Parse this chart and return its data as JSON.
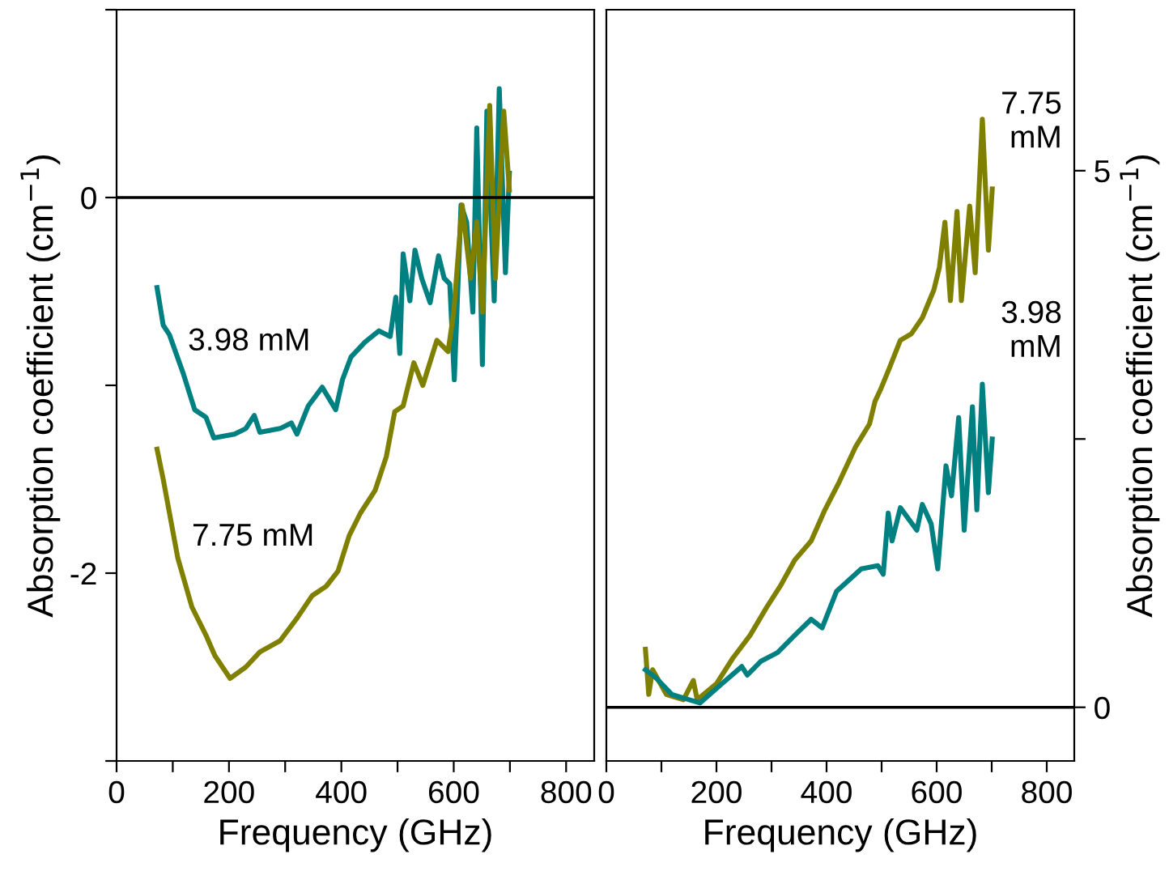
{
  "chart_data": [
    {
      "type": "line",
      "xlabel": "Frequency (GHz)",
      "ylabel": "Absorption coefficient (cm$^{−1}$)",
      "xlim": [
        0,
        850
      ],
      "ylim": [
        -3,
        1
      ],
      "xticks": [
        0,
        {
          "value": 100,
          "label": null
        },
        200,
        {
          "value": 300,
          "label": null
        },
        400,
        {
          "value": 500,
          "label": null
        },
        600,
        {
          "value": 700,
          "label": null
        },
        800
      ],
      "yticks": [
        {
          "value": -3,
          "label": null
        },
        -2,
        {
          "value": -1,
          "label": null
        },
        0,
        {
          "value": 1,
          "label": null
        }
      ],
      "ref_lines": [
        {
          "axis": "y",
          "value": 0,
          "color": "#000000"
        }
      ],
      "grid": false,
      "legend": false,
      "series": [
        {
          "name": "3.98 mM",
          "color": "#008080",
          "x": [
            72,
            83,
            94,
            119,
            139,
            159,
            173,
            210,
            230,
            245,
            255,
            291,
            311,
            321,
            341,
            366,
            390,
            402,
            417,
            442,
            467,
            487,
            497,
            504,
            510,
            522,
            531,
            543,
            558,
            573,
            583,
            593,
            601,
            613,
            623,
            634,
            641,
            651,
            659,
            672,
            681,
            692,
            699
          ],
          "values": [
            -0.48,
            -0.68,
            -0.73,
            -0.94,
            -1.13,
            -1.17,
            -1.28,
            -1.26,
            -1.23,
            -1.16,
            -1.25,
            -1.23,
            -1.2,
            -1.26,
            -1.11,
            -1.01,
            -1.13,
            -0.97,
            -0.85,
            -0.77,
            -0.71,
            -0.74,
            -0.53,
            -0.83,
            -0.3,
            -0.55,
            -0.28,
            -0.43,
            -0.56,
            -0.31,
            -0.43,
            -0.46,
            -0.97,
            -0.04,
            -0.13,
            -0.61,
            0.37,
            -0.89,
            0.46,
            -0.55,
            0.58,
            -0.4,
            0.13
          ]
        },
        {
          "name": "7.75 mM",
          "color": "#808000",
          "x": [
            72,
            83,
            109,
            134,
            159,
            175,
            202,
            230,
            255,
            291,
            321,
            348,
            373,
            394,
            414,
            434,
            460,
            480,
            495,
            510,
            529,
            545,
            570,
            590,
            600,
            615,
            630,
            641,
            651,
            664,
            674,
            689,
            699
          ],
          "values": [
            -1.34,
            -1.5,
            -1.92,
            -2.18,
            -2.33,
            -2.44,
            -2.56,
            -2.5,
            -2.42,
            -2.36,
            -2.24,
            -2.12,
            -2.07,
            -1.99,
            -1.8,
            -1.68,
            -1.56,
            -1.38,
            -1.14,
            -1.11,
            -0.88,
            -1.0,
            -0.76,
            -0.82,
            -0.61,
            -0.04,
            -0.43,
            -0.13,
            -0.61,
            0.49,
            -0.43,
            0.46,
            0.04
          ]
        }
      ]
    },
    {
      "type": "line",
      "xlabel": "Frequency (GHz)",
      "ylabel": "Absorption coefficient (cm$^{−1}$)",
      "xlim": [
        0,
        850
      ],
      "ylim": [
        -0.5,
        6.5
      ],
      "xticks": [
        0,
        {
          "value": 100,
          "label": null
        },
        200,
        {
          "value": 300,
          "label": null
        },
        400,
        {
          "value": 500,
          "label": null
        },
        600,
        {
          "value": 700,
          "label": null
        },
        800
      ],
      "yticks": [
        0,
        {
          "value": 2.5,
          "label": null
        },
        5
      ],
      "ref_lines": [
        {
          "axis": "y",
          "value": 0,
          "color": "#000000"
        }
      ],
      "grid": false,
      "legend": false,
      "series": [
        {
          "name": "7.75 mM",
          "color": "#808000",
          "x": [
            71,
            77,
            84,
            109,
            140,
            158,
            165,
            200,
            230,
            261,
            291,
            316,
            342,
            372,
            397,
            423,
            453,
            478,
            488,
            498,
            514,
            534,
            554,
            574,
            595,
            605,
            615,
            625,
            637,
            645,
            660,
            670,
            683,
            694,
            701
          ],
          "values": [
            0.54,
            0.12,
            0.35,
            0.12,
            0.07,
            0.25,
            0.07,
            0.22,
            0.46,
            0.67,
            0.93,
            1.13,
            1.37,
            1.55,
            1.84,
            2.1,
            2.43,
            2.64,
            2.85,
            2.96,
            3.16,
            3.42,
            3.48,
            3.63,
            3.89,
            4.1,
            4.52,
            3.79,
            4.62,
            3.79,
            4.67,
            4.05,
            5.48,
            4.26,
            4.83
          ]
        },
        {
          "name": "3.98 mM",
          "color": "#008080",
          "x": [
            71,
            89,
            119,
            170,
            210,
            246,
            256,
            281,
            311,
            342,
            372,
            392,
            418,
            463,
            493,
            503,
            512,
            519,
            534,
            564,
            574,
            590,
            602,
            617,
            627,
            640,
            650,
            665,
            673,
            683,
            694,
            701
          ],
          "values": [
            0.35,
            0.28,
            0.12,
            0.04,
            0.22,
            0.38,
            0.3,
            0.43,
            0.51,
            0.67,
            0.82,
            0.74,
            1.08,
            1.29,
            1.32,
            1.24,
            1.81,
            1.55,
            1.86,
            1.65,
            1.89,
            1.71,
            1.29,
            2.25,
            1.97,
            2.7,
            1.65,
            2.8,
            1.84,
            3.01,
            2.0,
            2.5
          ]
        }
      ]
    }
  ]
}
